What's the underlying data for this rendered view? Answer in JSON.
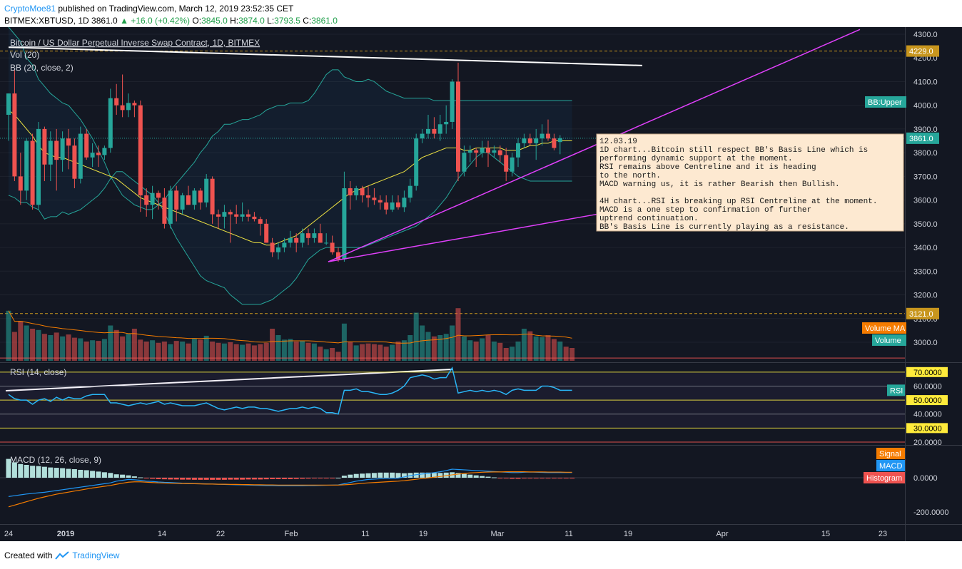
{
  "header": {
    "author": "CryptoMoe81",
    "published": "published on TradingView.com, March 12, 2019 23:52:35 CET",
    "symbol": "BITMEX:XBTUSD, 1D",
    "last": "3861.0",
    "change": "+16.0 (+0.42%)",
    "o_label": "O:",
    "o": "3845.0",
    "h_label": "H:",
    "h": "3874.0",
    "l_label": "L:",
    "l": "3793.5",
    "c_label": "C:",
    "c": "3861.0"
  },
  "legend": {
    "title": "Bitcoin / US Dollar Perpetual Inverse Swap Contract, 1D, BITMEX",
    "vol": "Vol (20)",
    "bb": "BB (20, close, 2)",
    "rsi": "RSI (14, close)",
    "macd": "MACD (12, 26, close, 9)"
  },
  "price_axis": {
    "ticks": [
      "4300.0",
      "4200.0",
      "4100.0",
      "4000.0",
      "3900.0",
      "3800.0",
      "3700.0",
      "3600.0",
      "3500.0",
      "3400.0",
      "3300.0",
      "3200.0",
      "3100.0",
      "3000.0"
    ],
    "tags": [
      {
        "text": "4229.0",
        "color": "#c8961e"
      },
      {
        "text": "BB:Upper",
        "color": "#26a69a"
      },
      {
        "text": "3861.0",
        "color": "#26a69a"
      },
      {
        "text": "3121.0",
        "color": "#c8961e"
      },
      {
        "text": "Volume MA",
        "color": "#f57c00"
      },
      {
        "text": "Volume",
        "color": "#26a69a"
      }
    ]
  },
  "rsi_axis": {
    "ticks": [
      "70.0000",
      "60.0000",
      "50.0000",
      "40.0000",
      "30.0000",
      "20.0000"
    ],
    "tag": "RSI"
  },
  "macd_axis": {
    "ticks": [
      "0.0000",
      "-200.0000"
    ],
    "tags": [
      {
        "text": "Signal",
        "color": "#f57c00"
      },
      {
        "text": "MACD",
        "color": "#2196f3"
      },
      {
        "text": "Histogram",
        "color": "#ef5350"
      }
    ]
  },
  "time_axis": {
    "labels": [
      "24",
      "2019",
      "14",
      "22",
      "Feb",
      "11",
      "19",
      "Mar",
      "11",
      "19",
      "Apr",
      "15",
      "23"
    ]
  },
  "annotation": {
    "date": "12.03.19",
    "lines": [
      "1D chart...Bitcoin still respect BB's Basis Line which is",
      "performing dynamic support at the moment.",
      "RSI remains above Centreline and it is heading",
      "to the north.",
      "MACD warning us, it is rather Bearish then Bullish.",
      "",
      "4H chart...RSI is breaking up RSI Centreline at the moment.",
      "MACD is a one step to confirmation of further",
      "uptrend continuation.",
      "BB's Basis Line is currently playing as a resistance."
    ]
  },
  "footer": {
    "created": "Created with",
    "brand": "TradingView"
  },
  "chart_data": {
    "type": "candlestick",
    "price_range": [
      2950,
      4320
    ],
    "levels": [
      4229,
      3121
    ],
    "candles": [
      [
        3960,
        4050,
        3850,
        4050
      ],
      [
        4050,
        4150,
        3680,
        3700
      ],
      [
        3700,
        3800,
        3580,
        3640
      ],
      [
        3640,
        3860,
        3600,
        3850
      ],
      [
        3850,
        3880,
        3560,
        3580
      ],
      [
        3580,
        3930,
        3560,
        3900
      ],
      [
        3900,
        3910,
        3680,
        3750
      ],
      [
        3750,
        3890,
        3680,
        3850
      ],
      [
        3850,
        3900,
        3640,
        3770
      ],
      [
        3770,
        3890,
        3720,
        3860
      ],
      [
        3860,
        3900,
        3730,
        3830
      ],
      [
        3830,
        3860,
        3650,
        3690
      ],
      [
        3690,
        3910,
        3670,
        3880
      ],
      [
        3880,
        3900,
        3770,
        3780
      ],
      [
        3780,
        3840,
        3740,
        3800
      ],
      [
        3800,
        3830,
        3740,
        3790
      ],
      [
        3790,
        3830,
        3770,
        3820
      ],
      [
        3820,
        4070,
        3800,
        4030
      ],
      [
        4030,
        4090,
        3960,
        4000
      ],
      [
        4000,
        4130,
        3950,
        3980
      ],
      [
        3980,
        4050,
        3950,
        4010
      ],
      [
        4010,
        4020,
        3950,
        4000
      ],
      [
        4000,
        4020,
        3550,
        3620
      ],
      [
        3620,
        3650,
        3530,
        3580
      ],
      [
        3580,
        3660,
        3520,
        3630
      ],
      [
        3630,
        3640,
        3560,
        3610
      ],
      [
        3610,
        3650,
        3480,
        3500
      ],
      [
        3500,
        3660,
        3480,
        3640
      ],
      [
        3640,
        3660,
        3510,
        3560
      ],
      [
        3560,
        3630,
        3540,
        3620
      ],
      [
        3620,
        3660,
        3580,
        3580
      ],
      [
        3580,
        3650,
        3560,
        3640
      ],
      [
        3640,
        3650,
        3560,
        3590
      ],
      [
        3590,
        3710,
        3570,
        3690
      ],
      [
        3690,
        3700,
        3500,
        3540
      ],
      [
        3540,
        3560,
        3480,
        3530
      ],
      [
        3530,
        3580,
        3480,
        3550
      ],
      [
        3550,
        3560,
        3420,
        3540
      ],
      [
        3540,
        3580,
        3500,
        3530
      ],
      [
        3530,
        3590,
        3510,
        3540
      ],
      [
        3540,
        3560,
        3510,
        3530
      ],
      [
        3530,
        3550,
        3510,
        3520
      ],
      [
        3520,
        3530,
        3450,
        3500
      ],
      [
        3500,
        3520,
        3420,
        3420
      ],
      [
        3420,
        3440,
        3360,
        3380
      ],
      [
        3380,
        3420,
        3350,
        3400
      ],
      [
        3400,
        3440,
        3380,
        3420
      ],
      [
        3420,
        3470,
        3400,
        3440
      ],
      [
        3440,
        3460,
        3380,
        3420
      ],
      [
        3420,
        3480,
        3400,
        3460
      ],
      [
        3460,
        3480,
        3410,
        3440
      ],
      [
        3440,
        3480,
        3420,
        3460
      ],
      [
        3460,
        3500,
        3420,
        3420
      ],
      [
        3420,
        3460,
        3410,
        3420
      ],
      [
        3420,
        3450,
        3370,
        3380
      ],
      [
        3380,
        3400,
        3340,
        3350
      ],
      [
        3350,
        3720,
        3340,
        3650
      ],
      [
        3650,
        3680,
        3560,
        3620
      ],
      [
        3620,
        3660,
        3600,
        3650
      ],
      [
        3650,
        3660,
        3590,
        3620
      ],
      [
        3620,
        3660,
        3570,
        3610
      ],
      [
        3610,
        3650,
        3580,
        3600
      ],
      [
        3600,
        3620,
        3560,
        3590
      ],
      [
        3590,
        3620,
        3540,
        3560
      ],
      [
        3560,
        3620,
        3550,
        3590
      ],
      [
        3590,
        3620,
        3560,
        3570
      ],
      [
        3570,
        3640,
        3550,
        3610
      ],
      [
        3610,
        3690,
        3590,
        3660
      ],
      [
        3660,
        3880,
        3640,
        3860
      ],
      [
        3860,
        3900,
        3840,
        3880
      ],
      [
        3880,
        3960,
        3860,
        3900
      ],
      [
        3900,
        3950,
        3860,
        3880
      ],
      [
        3880,
        3960,
        3850,
        3920
      ],
      [
        3920,
        4000,
        3880,
        3930
      ],
      [
        3930,
        4110,
        3900,
        4100
      ],
      [
        4100,
        4180,
        3680,
        3720
      ],
      [
        3720,
        3830,
        3700,
        3800
      ],
      [
        3800,
        3830,
        3760,
        3810
      ],
      [
        3810,
        3820,
        3740,
        3800
      ],
      [
        3800,
        3850,
        3780,
        3820
      ],
      [
        3820,
        3850,
        3740,
        3800
      ],
      [
        3800,
        3830,
        3780,
        3810
      ],
      [
        3810,
        3830,
        3760,
        3790
      ],
      [
        3790,
        3820,
        3680,
        3720
      ],
      [
        3720,
        3800,
        3700,
        3780
      ],
      [
        3780,
        3860,
        3740,
        3840
      ],
      [
        3840,
        3880,
        3820,
        3860
      ],
      [
        3860,
        3880,
        3830,
        3840
      ],
      [
        3840,
        3900,
        3770,
        3860
      ],
      [
        3860,
        3920,
        3830,
        3880
      ],
      [
        3880,
        3940,
        3850,
        3860
      ],
      [
        3860,
        3880,
        3810,
        3820
      ],
      [
        3845,
        3874,
        3793.5,
        3861
      ]
    ],
    "bb_upper": [
      4330,
      4300,
      4270,
      4200,
      4170,
      4110,
      4080,
      4050,
      4030,
      4010,
      4000,
      3970,
      3940,
      3900,
      3860,
      3810,
      3760,
      3700,
      3660,
      3620,
      3600,
      3580,
      3570,
      3560,
      3560,
      3580,
      3600,
      3640,
      3670,
      3700,
      3730,
      3760,
      3800,
      3830,
      3870,
      3890,
      3920,
      3920,
      3930,
      3940,
      3940,
      3950,
      3960,
      3980,
      3990,
      4000,
      4000,
      4010,
      4010,
      4010,
      4020,
      4050,
      4090,
      4130,
      4150,
      4150,
      4120,
      4110,
      4100,
      4100,
      4110,
      4100,
      4080,
      4060,
      4050,
      4040,
      4030,
      4030,
      4030,
      4030,
      4030,
      4020,
      4020,
      4020,
      4020,
      4020,
      4020,
      4020,
      4020,
      4020,
      4020,
      4020,
      4020,
      4020,
      4020,
      4020,
      4020,
      4020,
      4020,
      4020,
      4020,
      4020,
      4020,
      4020,
      4020
    ],
    "bb_basis": [
      3980,
      3960,
      3930,
      3900,
      3870,
      3830,
      3800,
      3790,
      3780,
      3780,
      3770,
      3760,
      3750,
      3740,
      3730,
      3720,
      3710,
      3700,
      3690,
      3670,
      3650,
      3630,
      3610,
      3600,
      3590,
      3580,
      3570,
      3560,
      3550,
      3540,
      3530,
      3520,
      3510,
      3500,
      3490,
      3480,
      3470,
      3460,
      3450,
      3440,
      3430,
      3420,
      3420,
      3410,
      3410,
      3420,
      3430,
      3440,
      3450,
      3470,
      3490,
      3510,
      3530,
      3550,
      3570,
      3590,
      3610,
      3630,
      3640,
      3650,
      3660,
      3670,
      3680,
      3690,
      3700,
      3710,
      3720,
      3740,
      3760,
      3780,
      3790,
      3800,
      3810,
      3820,
      3820,
      3820,
      3810,
      3810,
      3820,
      3820,
      3820,
      3820,
      3820,
      3810,
      3810,
      3810,
      3820,
      3830,
      3830,
      3840,
      3840,
      3850,
      3850,
      3850,
      3850
    ],
    "bb_lower": [
      3620,
      3610,
      3590,
      3590,
      3570,
      3560,
      3520,
      3530,
      3530,
      3550,
      3540,
      3550,
      3560,
      3580,
      3600,
      3620,
      3650,
      3690,
      3720,
      3720,
      3700,
      3680,
      3660,
      3640,
      3620,
      3590,
      3550,
      3490,
      3440,
      3400,
      3360,
      3320,
      3280,
      3260,
      3250,
      3240,
      3230,
      3200,
      3180,
      3160,
      3160,
      3160,
      3160,
      3170,
      3180,
      3200,
      3220,
      3240,
      3270,
      3310,
      3350,
      3370,
      3390,
      3400,
      3400,
      3400,
      3400,
      3400,
      3400,
      3400,
      3410,
      3420,
      3430,
      3440,
      3450,
      3460,
      3470,
      3480,
      3490,
      3510,
      3530,
      3550,
      3580,
      3610,
      3650,
      3690,
      3720,
      3750,
      3780,
      3800,
      3800,
      3780,
      3760,
      3740,
      3720,
      3700,
      3690,
      3680,
      3680,
      3680,
      3680,
      3680,
      3680,
      3680,
      3680
    ],
    "volume_rel": [
      0.78,
      0.45,
      0.62,
      0.55,
      0.5,
      0.48,
      0.42,
      0.4,
      0.44,
      0.38,
      0.41,
      0.36,
      0.35,
      0.3,
      0.32,
      0.31,
      0.34,
      0.55,
      0.48,
      0.38,
      0.42,
      0.5,
      0.33,
      0.3,
      0.32,
      0.28,
      0.3,
      0.26,
      0.31,
      0.3,
      0.27,
      0.35,
      0.33,
      0.39,
      0.3,
      0.28,
      0.27,
      0.29,
      0.26,
      0.25,
      0.27,
      0.24,
      0.26,
      0.28,
      0.5,
      0.4,
      0.33,
      0.34,
      0.3,
      0.31,
      0.28,
      0.27,
      0.22,
      0.18,
      0.2,
      0.14,
      0.58,
      0.3,
      0.24,
      0.26,
      0.27,
      0.26,
      0.25,
      0.22,
      0.25,
      0.3,
      0.32,
      0.4,
      0.75,
      0.55,
      0.45,
      0.38,
      0.4,
      0.42,
      0.55,
      0.82,
      0.38,
      0.32,
      0.3,
      0.35,
      0.4,
      0.3,
      0.28,
      0.2,
      0.22,
      0.3,
      0.5,
      0.46,
      0.38,
      0.37,
      0.4,
      0.34,
      0.3,
      0.22,
      0.2
    ],
    "rsi": [
      54,
      51,
      50,
      50,
      47,
      50,
      51,
      49,
      52,
      50,
      52,
      51,
      51,
      53,
      54,
      54,
      54,
      48,
      48,
      47,
      46,
      47,
      48,
      47,
      48,
      49,
      47,
      48,
      47,
      46,
      46,
      46,
      47,
      48,
      46,
      44,
      43,
      44,
      45,
      44,
      45,
      45,
      44,
      44,
      43,
      42,
      43,
      44,
      44,
      45,
      44,
      45,
      44,
      41,
      41,
      40,
      57,
      57,
      58,
      56,
      56,
      55,
      54,
      54,
      55,
      57,
      60,
      66,
      67,
      68,
      67,
      65,
      66,
      66,
      73,
      55,
      56,
      57,
      56,
      57,
      56,
      57,
      56,
      54,
      57,
      58,
      57,
      57,
      57,
      60,
      60,
      59,
      57,
      57,
      57
    ],
    "macd": [
      -110,
      -105,
      -100,
      -95,
      -92,
      -88,
      -85,
      -80,
      -75,
      -70,
      -65,
      -60,
      -55,
      -50,
      -45,
      -40,
      -35,
      -30,
      -20,
      -15,
      -10,
      -12,
      -15,
      -20,
      -22,
      -25,
      -27,
      -28,
      -30,
      -32,
      -33,
      -34,
      -35,
      -36,
      -37,
      -38,
      -39,
      -40,
      -41,
      -42,
      -43,
      -44,
      -45,
      -46,
      -46,
      -47,
      -47,
      -47,
      -47,
      -47,
      -46,
      -46,
      -45,
      -44,
      -43,
      -42,
      -35,
      -28,
      -20,
      -15,
      -10,
      -8,
      -6,
      -4,
      -3,
      -2,
      5,
      12,
      18,
      22,
      25,
      30,
      35,
      42,
      50,
      48,
      46,
      44,
      42,
      40,
      38,
      36,
      34,
      32,
      30,
      30,
      32,
      33,
      32,
      31,
      30,
      30,
      30,
      30,
      30
    ],
    "signal": [
      -170,
      -160,
      -150,
      -140,
      -130,
      -120,
      -112,
      -104,
      -96,
      -90,
      -84,
      -78,
      -72,
      -66,
      -60,
      -55,
      -50,
      -45,
      -38,
      -32,
      -26,
      -24,
      -24,
      -26,
      -28,
      -30,
      -31,
      -32,
      -33,
      -34,
      -35,
      -35,
      -36,
      -37,
      -37,
      -38,
      -38,
      -39,
      -39,
      -40,
      -40,
      -41,
      -41,
      -42,
      -42,
      -43,
      -43,
      -43,
      -43,
      -43,
      -43,
      -43,
      -43,
      -43,
      -43,
      -43,
      -41,
      -39,
      -36,
      -33,
      -30,
      -28,
      -26,
      -24,
      -22,
      -20,
      -17,
      -13,
      -9,
      -5,
      -1,
      3,
      7,
      12,
      17,
      21,
      25,
      28,
      30,
      32,
      33,
      34,
      34,
      35,
      35,
      35,
      35,
      34,
      34,
      34,
      33,
      33,
      33,
      32,
      32
    ],
    "hist": [
      110,
      90,
      80,
      75,
      70,
      68,
      64,
      60,
      58,
      56,
      52,
      50,
      46,
      44,
      40,
      36,
      32,
      28,
      20,
      18,
      14,
      8,
      2,
      -4,
      -6,
      -8,
      -9,
      -10,
      -10,
      -11,
      -11,
      -12,
      -12,
      -12,
      -12,
      -12,
      -12,
      -11,
      -11,
      -11,
      -10,
      -10,
      -10,
      -9,
      -8,
      -8,
      -8,
      -8,
      -7,
      -6,
      -5,
      -4,
      -3,
      -2,
      -1,
      0,
      12,
      18,
      22,
      24,
      26,
      28,
      30,
      30,
      30,
      28,
      26,
      28,
      30,
      30,
      30,
      28,
      28,
      30,
      32,
      28,
      22,
      18,
      14,
      10,
      6,
      2,
      -2,
      -4,
      -6,
      -6,
      -4,
      -2,
      -2,
      -3,
      -4,
      -4,
      -4,
      -3,
      -3
    ]
  }
}
